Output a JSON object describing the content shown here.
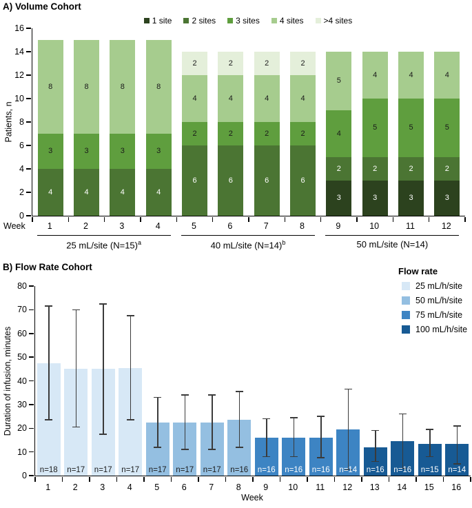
{
  "chart_data": [
    {
      "id": "volume_cohort",
      "type": "stacked_bar",
      "title": "A) Volume Cohort",
      "ylabel": "Patients, n",
      "xlabel": "Week",
      "ylim": [
        0,
        16
      ],
      "ytick_step": 2,
      "grid": false,
      "legend_position": "top-center",
      "categories": [
        "1",
        "2",
        "3",
        "4",
        "5",
        "6",
        "7",
        "8",
        "9",
        "10",
        "11",
        "12"
      ],
      "series": [
        {
          "name": "1 site",
          "color": "#2c421e",
          "values": [
            0,
            0,
            0,
            0,
            0,
            0,
            0,
            0,
            3,
            3,
            3,
            3
          ]
        },
        {
          "name": "2 sites",
          "color": "#4b7533",
          "values": [
            4,
            4,
            4,
            4,
            6,
            6,
            6,
            6,
            2,
            2,
            2,
            2
          ]
        },
        {
          "name": "3 sites",
          "color": "#5f9e3e",
          "values": [
            3,
            3,
            3,
            3,
            2,
            2,
            2,
            2,
            4,
            5,
            5,
            5
          ]
        },
        {
          "name": "4 sites",
          "color": "#a6cc8e",
          "values": [
            8,
            8,
            8,
            8,
            4,
            4,
            4,
            4,
            5,
            4,
            4,
            4
          ]
        },
        {
          "name": ">4 sites",
          "color": "#e4efda",
          "values": [
            0,
            0,
            0,
            0,
            2,
            2,
            2,
            2,
            0,
            0,
            0,
            0
          ]
        }
      ],
      "segment_label_colors": [
        "#ffffff",
        "#ffffff",
        "#1a1a1a",
        "#1a1a1a",
        "#1a1a1a"
      ],
      "groups": [
        {
          "label": "25 mL/site (N=15)",
          "sup": "a",
          "start": 1,
          "end": 4
        },
        {
          "label": "40 mL/site (N=14)",
          "sup": "b",
          "start": 5,
          "end": 8
        },
        {
          "label": "50 mL/site (N=14)",
          "sup": "",
          "start": 9,
          "end": 12
        }
      ]
    },
    {
      "id": "flow_rate_cohort",
      "type": "bar",
      "title": "B) Flow Rate Cohort",
      "ylabel": "Duration of infusion, minutes",
      "xlabel": "Week",
      "ylim": [
        0,
        80
      ],
      "ytick_step": 10,
      "grid": false,
      "legend_title": "Flow rate",
      "legend_position": "top-right",
      "legend": [
        {
          "label": "25 mL/h/site",
          "color": "#d7e8f6"
        },
        {
          "label": "50 mL/h/site",
          "color": "#94bfe1"
        },
        {
          "label": "75 mL/h/site",
          "color": "#3d84c3"
        },
        {
          "label": "100 mL/h/site",
          "color": "#175a94"
        }
      ],
      "error_bar_color": "#3a3a3a",
      "categories": [
        "1",
        "2",
        "3",
        "4",
        "5",
        "6",
        "7",
        "8",
        "9",
        "10",
        "11",
        "12",
        "13",
        "14",
        "15",
        "16"
      ],
      "bars": [
        {
          "week": "1",
          "flow": "25 mL/h/site",
          "value": 47.5,
          "err_low": 23.5,
          "err_high": 71.5,
          "n_label": "n=18",
          "n_color": "#1a1a1a"
        },
        {
          "week": "2",
          "flow": "25 mL/h/site",
          "value": 45,
          "err_low": 20.5,
          "err_high": 70,
          "n_label": "n=17",
          "n_color": "#1a1a1a"
        },
        {
          "week": "3",
          "flow": "25 mL/h/site",
          "value": 45,
          "err_low": 17.5,
          "err_high": 72.5,
          "n_label": "n=17",
          "n_color": "#1a1a1a"
        },
        {
          "week": "4",
          "flow": "25 mL/h/site",
          "value": 45.5,
          "err_low": 23.5,
          "err_high": 67.5,
          "n_label": "n=17",
          "n_color": "#1a1a1a"
        },
        {
          "week": "5",
          "flow": "50 mL/h/site",
          "value": 22.5,
          "err_low": 12,
          "err_high": 33,
          "n_label": "n=17",
          "n_color": "#1a1a1a"
        },
        {
          "week": "6",
          "flow": "50 mL/h/site",
          "value": 22.5,
          "err_low": 11,
          "err_high": 34,
          "n_label": "n=17",
          "n_color": "#1a1a1a"
        },
        {
          "week": "7",
          "flow": "50 mL/h/site",
          "value": 22.5,
          "err_low": 11,
          "err_high": 34,
          "n_label": "n=17",
          "n_color": "#1a1a1a"
        },
        {
          "week": "8",
          "flow": "50 mL/h/site",
          "value": 23.5,
          "err_low": 12,
          "err_high": 35.5,
          "n_label": "n=16",
          "n_color": "#1a1a1a"
        },
        {
          "week": "9",
          "flow": "75 mL/h/site",
          "value": 16,
          "err_low": 8,
          "err_high": 24,
          "n_label": "n=16",
          "n_color": "#ffffff"
        },
        {
          "week": "10",
          "flow": "75 mL/h/site",
          "value": 16,
          "err_low": 8,
          "err_high": 24.5,
          "n_label": "n=16",
          "n_color": "#ffffff"
        },
        {
          "week": "11",
          "flow": "75 mL/h/site",
          "value": 16,
          "err_low": 7.5,
          "err_high": 25,
          "n_label": "n=16",
          "n_color": "#ffffff"
        },
        {
          "week": "12",
          "flow": "75 mL/h/site",
          "value": 19.5,
          "err_low": 2.5,
          "err_high": 36.5,
          "n_label": "n=14",
          "n_color": "#ffffff"
        },
        {
          "week": "13",
          "flow": "100 mL/h/site",
          "value": 12,
          "err_low": 6,
          "err_high": 19,
          "n_label": "n=16",
          "n_color": "#ffffff"
        },
        {
          "week": "14",
          "flow": "100 mL/h/site",
          "value": 14.5,
          "err_low": 3,
          "err_high": 26,
          "n_label": "n=16",
          "n_color": "#ffffff"
        },
        {
          "week": "15",
          "flow": "100 mL/h/site",
          "value": 13.5,
          "err_low": 8,
          "err_high": 19.5,
          "n_label": "n=15",
          "n_color": "#ffffff"
        },
        {
          "week": "16",
          "flow": "100 mL/h/site",
          "value": 13.5,
          "err_low": 5,
          "err_high": 21,
          "n_label": "n=14",
          "n_color": "#ffffff"
        }
      ]
    }
  ]
}
